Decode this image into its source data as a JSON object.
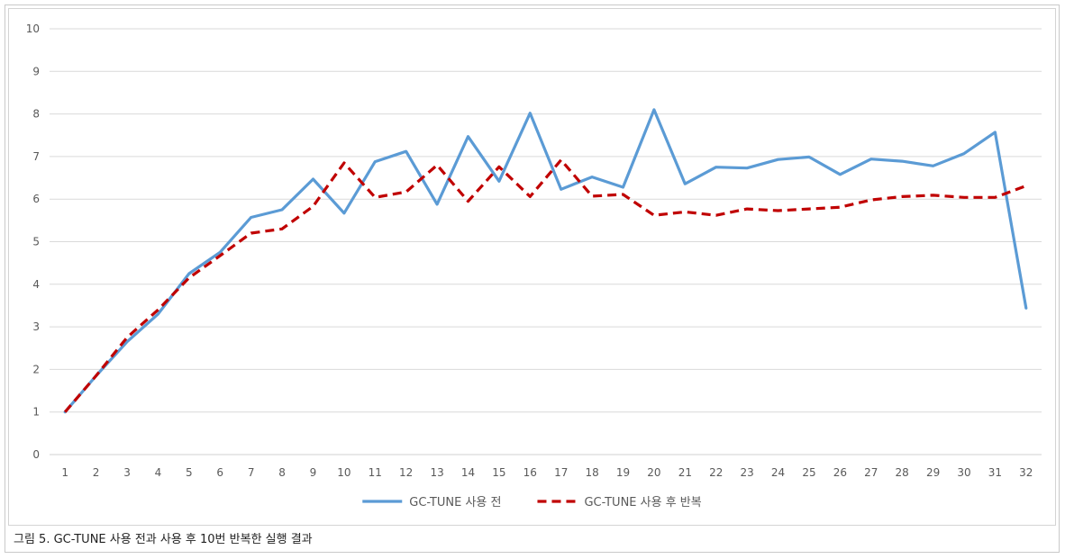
{
  "caption": "그림 5. GC-TUNE 사용 전과 사용 후 10번 반복한 실행 결과",
  "chart_data": {
    "type": "line",
    "title": "",
    "xlabel": "",
    "ylabel": "",
    "ylim": [
      0,
      10
    ],
    "ytick_step": 1,
    "grid": true,
    "legend_position": "bottom",
    "categories": [
      "1",
      "2",
      "3",
      "4",
      "5",
      "6",
      "7",
      "8",
      "9",
      "10",
      "11",
      "12",
      "13",
      "14",
      "15",
      "16",
      "17",
      "18",
      "19",
      "20",
      "21",
      "22",
      "23",
      "24",
      "25",
      "26",
      "27",
      "28",
      "29",
      "30",
      "31",
      "32"
    ],
    "series": [
      {
        "name": "GC-TUNE 사용 전",
        "color": "#5B9BD5",
        "dash": "solid",
        "values": [
          1.0,
          1.85,
          2.65,
          3.3,
          4.25,
          4.75,
          5.57,
          5.75,
          6.47,
          5.67,
          6.88,
          7.12,
          5.88,
          7.47,
          6.42,
          8.02,
          6.23,
          6.52,
          6.28,
          8.1,
          6.36,
          6.75,
          6.73,
          6.93,
          6.99,
          6.58,
          6.94,
          6.89,
          6.78,
          7.07,
          7.57,
          3.44
        ]
      },
      {
        "name": "GC-TUNE 사용 후 반복",
        "color": "#C00000",
        "dash": "dashed",
        "values": [
          1.0,
          1.85,
          2.75,
          3.4,
          4.15,
          4.67,
          5.2,
          5.3,
          5.83,
          6.85,
          6.04,
          6.17,
          6.8,
          5.95,
          6.76,
          6.06,
          6.92,
          6.07,
          6.11,
          5.62,
          5.7,
          5.62,
          5.77,
          5.73,
          5.77,
          5.81,
          5.98,
          6.06,
          6.09,
          6.04,
          6.04,
          6.31
        ]
      }
    ]
  }
}
